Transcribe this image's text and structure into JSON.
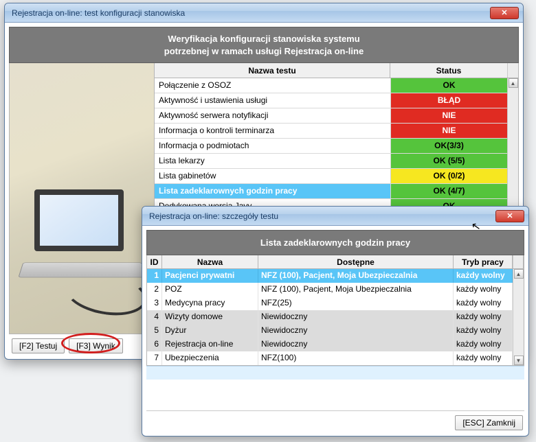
{
  "colors": {
    "status_ok": "#55c43c",
    "status_err": "#e02b22",
    "status_warn": "#f6e720",
    "row_highlight": "#59c5f7",
    "header_gray": "#7a7a7a"
  },
  "main_window": {
    "title": "Rejestracja on-line: test konfiguracji stanowiska",
    "header_line1": "Weryfikacja konfiguracji stanowiska systemu",
    "header_line2": "potrzebnej w ramach usługi Rejestracja on-line",
    "col_name": "Nazwa testu",
    "col_status": "Status",
    "tests": [
      {
        "name": "Połączenie z OSOZ",
        "status": "OK",
        "kind": "ok"
      },
      {
        "name": "Aktywność i ustawienia usługi",
        "status": "BŁĄD",
        "kind": "err"
      },
      {
        "name": "Aktywność serwera notyfikacji",
        "status": "NIE",
        "kind": "err"
      },
      {
        "name": "Informacja o kontroli terminarza",
        "status": "NIE",
        "kind": "err"
      },
      {
        "name": "Informacja o podmiotach",
        "status": "OK(3/3)",
        "kind": "ok"
      },
      {
        "name": "Lista lekarzy",
        "status": "OK (5/5)",
        "kind": "ok"
      },
      {
        "name": "Lista gabinetów",
        "status": "OK (0/2)",
        "kind": "warn"
      },
      {
        "name": "Lista zadeklarownych godzin pracy",
        "status": "OK (4/7)",
        "kind": "ok",
        "selected": true
      },
      {
        "name": "Dedykowana wersja Javy",
        "status": "OK",
        "kind": "ok"
      }
    ],
    "btn_test": "[F2] Testuj",
    "btn_result": "[F3] Wynik"
  },
  "detail_window": {
    "title": "Rejestracja on-line: szczegóły testu",
    "header": "Lista zadeklarownych godzin pracy",
    "col_id": "ID",
    "col_name": "Nazwa",
    "col_dost": "Dostępne",
    "col_tryb": "Tryb pracy",
    "rows": [
      {
        "id": "1",
        "name": "Pacjenci prywatni",
        "dost": "NFZ (100), Pacjent, Moja Ubezpieczalnia",
        "tryb": "każdy wolny",
        "hl": true
      },
      {
        "id": "2",
        "name": "POZ",
        "dost": "NFZ (100), Pacjent, Moja Ubezpieczalnia",
        "tryb": "każdy wolny"
      },
      {
        "id": "3",
        "name": "Medycyna pracy",
        "dost": "NFZ(25)",
        "tryb": "każdy wolny"
      },
      {
        "id": "4",
        "name": "Wizyty domowe",
        "dost": "Niewidoczny",
        "tryb": "każdy wolny",
        "alt": true
      },
      {
        "id": "5",
        "name": "Dyżur",
        "dost": "Niewidoczny",
        "tryb": "każdy wolny",
        "alt": true
      },
      {
        "id": "6",
        "name": "Rejestracja on-line",
        "dost": "Niewidoczny",
        "tryb": "każdy wolny",
        "alt": true
      },
      {
        "id": "7",
        "name": "Ubezpieczenia",
        "dost": "NFZ(100)",
        "tryb": "każdy wolny"
      }
    ],
    "btn_close": "[ESC] Zamknij"
  }
}
